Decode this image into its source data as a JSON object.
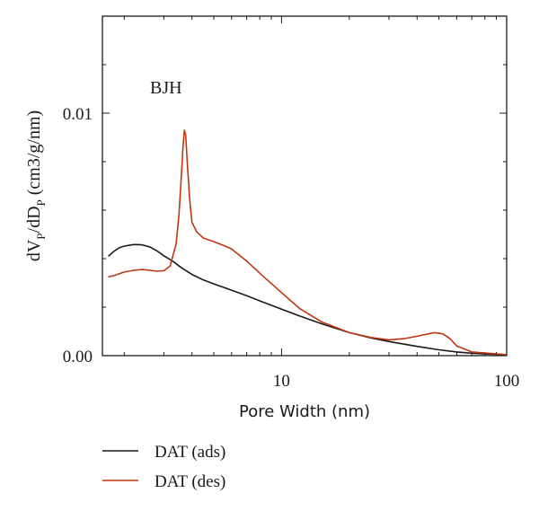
{
  "chart_data": {
    "type": "line",
    "annotation": "BJH",
    "xlabel": "Pore Width (nm)",
    "ylabel": "dV_P/dD_P (cm3/g/nm)",
    "ylabel_parts": {
      "base": "dV",
      "sub1": "P",
      "mid": "/dD",
      "sub2": "P",
      "tail": " (cm3/g/nm)"
    },
    "x_scale": "log",
    "xlim": [
      1.6,
      100
    ],
    "ylim": [
      0,
      0.014
    ],
    "x_ticks": [
      {
        "value": 10,
        "label": "10"
      },
      {
        "value": 100,
        "label": "100"
      }
    ],
    "y_ticks": [
      {
        "value": 0,
        "label": "0.00"
      },
      {
        "value": 0.01,
        "label": "0.01"
      }
    ],
    "legend_position": "bottom-left",
    "grid": false,
    "series": [
      {
        "name": "DAT (ads)",
        "color": "#1a1a1a",
        "x": [
          1.7,
          1.8,
          1.9,
          2.0,
          2.2,
          2.4,
          2.6,
          2.8,
          3.0,
          3.3,
          3.6,
          4.0,
          4.5,
          5.0,
          6.0,
          7.0,
          8.0,
          10.0,
          12.0,
          15.0,
          20.0,
          25.0,
          30.0,
          40.0,
          50.0,
          60.0,
          70.0,
          80.0,
          100.0
        ],
        "y": [
          0.0041,
          0.0043,
          0.00445,
          0.00452,
          0.00458,
          0.00457,
          0.00448,
          0.00432,
          0.00412,
          0.00388,
          0.00362,
          0.00335,
          0.00312,
          0.00296,
          0.0027,
          0.00247,
          0.00226,
          0.00192,
          0.00164,
          0.00132,
          0.00095,
          0.00073,
          0.00058,
          0.00038,
          0.00024,
          0.00015,
          0.0001,
          7e-05,
          4e-05
        ]
      },
      {
        "name": "DAT (des)",
        "color": "#c0360f",
        "x": [
          1.7,
          1.8,
          2.0,
          2.2,
          2.4,
          2.6,
          2.8,
          3.0,
          3.2,
          3.4,
          3.5,
          3.6,
          3.65,
          3.7,
          3.75,
          3.8,
          3.9,
          4.0,
          4.2,
          4.5,
          5.0,
          5.5,
          6.0,
          7.0,
          8.0,
          10.0,
          12.0,
          15.0,
          20.0,
          25.0,
          30.0,
          35.0,
          40.0,
          45.0,
          48.0,
          52.0,
          56.0,
          60.0,
          70.0,
          100.0
        ],
        "y": [
          0.00325,
          0.0033,
          0.00345,
          0.00352,
          0.00355,
          0.00352,
          0.00348,
          0.0035,
          0.0037,
          0.0046,
          0.0058,
          0.0076,
          0.0086,
          0.0093,
          0.0091,
          0.0082,
          0.0065,
          0.0055,
          0.0051,
          0.00485,
          0.0047,
          0.00455,
          0.0044,
          0.0039,
          0.0034,
          0.0026,
          0.00195,
          0.0014,
          0.00095,
          0.00075,
          0.00065,
          0.0007,
          0.0008,
          0.0009,
          0.00095,
          0.0009,
          0.0007,
          0.0004,
          0.00015,
          4e-05
        ]
      }
    ]
  }
}
